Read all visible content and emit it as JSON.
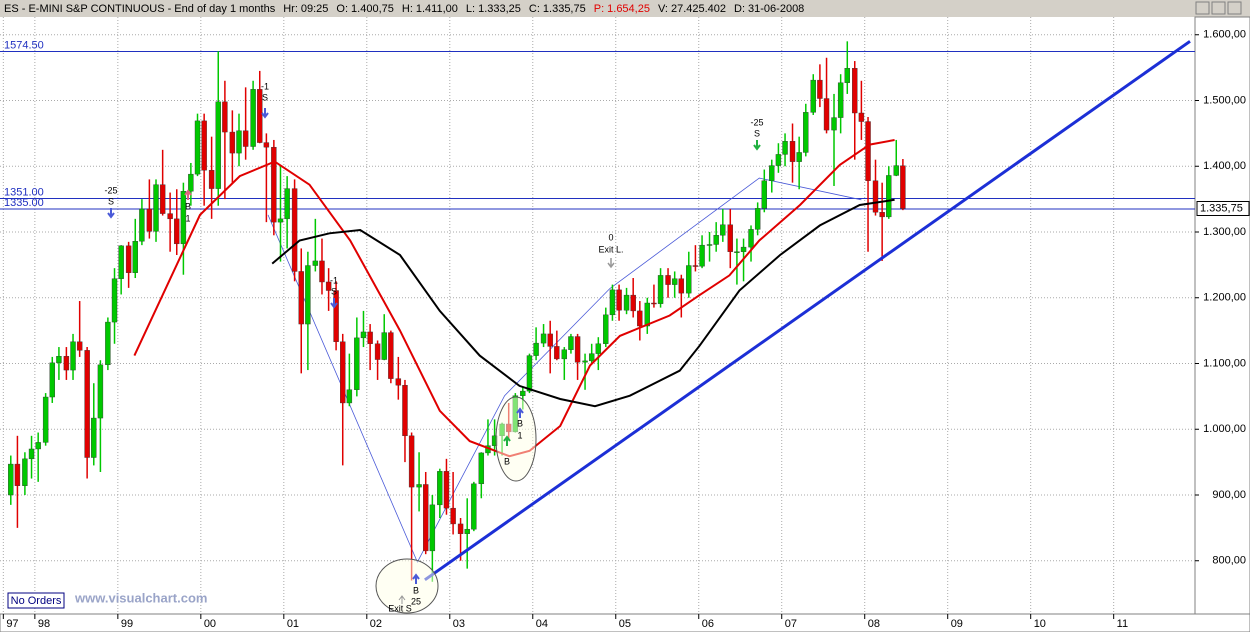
{
  "chart_data": {
    "type": "candlestick",
    "header_title": "ES - E-MINI S&P CONTINUOUS - End of day 1 months",
    "header": [
      {
        "label": "Hr:",
        "value": "09:25"
      },
      {
        "label": "O:",
        "value": "1.400,75"
      },
      {
        "label": "H:",
        "value": "1.411,00"
      },
      {
        "label": "L:",
        "value": "1.333,25"
      },
      {
        "label": "C:",
        "value": "1.335,75"
      },
      {
        "label": "P:",
        "value": "1.654,25",
        "color": "#e00000"
      },
      {
        "label": "V:",
        "value": "27.425.402"
      },
      {
        "label": "D:",
        "value": "31-06-2008"
      }
    ],
    "xlim": [
      1997.58,
      2011.98
    ],
    "ylim": [
      719,
      1627
    ],
    "grid": true,
    "xticks": [
      {
        "value": 1997.62,
        "label": "97"
      },
      {
        "value": 1998,
        "label": "98"
      },
      {
        "value": 1999,
        "label": "99"
      },
      {
        "value": 2000,
        "label": "00"
      },
      {
        "value": 2001,
        "label": "01"
      },
      {
        "value": 2002,
        "label": "02"
      },
      {
        "value": 2003,
        "label": "03"
      },
      {
        "value": 2004,
        "label": "04"
      },
      {
        "value": 2005,
        "label": "05"
      },
      {
        "value": 2006,
        "label": "06"
      },
      {
        "value": 2007,
        "label": "07"
      },
      {
        "value": 2008,
        "label": "08"
      },
      {
        "value": 2009,
        "label": "09"
      },
      {
        "value": 2010,
        "label": "10"
      },
      {
        "value": 2011,
        "label": "11"
      }
    ],
    "yticks": [
      {
        "value": 800,
        "label": "800,00"
      },
      {
        "value": 900,
        "label": "900,00"
      },
      {
        "value": 1000,
        "label": "1.000,00"
      },
      {
        "value": 1100,
        "label": "1.100,00"
      },
      {
        "value": 1200,
        "label": "1.200,00"
      },
      {
        "value": 1300,
        "label": "1.300,00"
      },
      {
        "value": 1400,
        "label": "1.400,00"
      },
      {
        "value": 1500,
        "label": "1.500,00"
      },
      {
        "value": 1600,
        "label": "1.600,00"
      }
    ],
    "up_color": "#00c800",
    "down_color": "#e00000",
    "x": [
      1997.71,
      1997.79,
      1997.88,
      1997.96,
      1998.04,
      1998.13,
      1998.21,
      1998.29,
      1998.38,
      1998.46,
      1998.54,
      1998.63,
      1998.71,
      1998.79,
      1998.88,
      1998.96,
      1999.04,
      1999.13,
      1999.21,
      1999.29,
      1999.38,
      1999.46,
      1999.54,
      1999.63,
      1999.71,
      1999.79,
      1999.88,
      1999.96,
      2000.04,
      2000.13,
      2000.21,
      2000.29,
      2000.38,
      2000.46,
      2000.54,
      2000.63,
      2000.71,
      2000.79,
      2000.88,
      2000.96,
      2001.04,
      2001.13,
      2001.21,
      2001.29,
      2001.38,
      2001.46,
      2001.54,
      2001.63,
      2001.71,
      2001.79,
      2001.88,
      2001.96,
      2002.04,
      2002.13,
      2002.21,
      2002.29,
      2002.38,
      2002.46,
      2002.54,
      2002.63,
      2002.71,
      2002.79,
      2002.88,
      2002.96,
      2003.04,
      2003.13,
      2003.21,
      2003.29,
      2003.38,
      2003.46,
      2003.54,
      2003.63,
      2003.71,
      2003.79,
      2003.88,
      2003.96,
      2004.04,
      2004.13,
      2004.21,
      2004.29,
      2004.38,
      2004.46,
      2004.54,
      2004.63,
      2004.71,
      2004.79,
      2004.88,
      2004.96,
      2005.04,
      2005.13,
      2005.21,
      2005.29,
      2005.38,
      2005.46,
      2005.54,
      2005.63,
      2005.71,
      2005.79,
      2005.88,
      2005.96,
      2006.04,
      2006.13,
      2006.21,
      2006.29,
      2006.38,
      2006.46,
      2006.54,
      2006.63,
      2006.71,
      2006.79,
      2006.88,
      2006.96,
      2007.04,
      2007.13,
      2007.21,
      2007.29,
      2007.38,
      2007.46,
      2007.54,
      2007.63,
      2007.71,
      2007.79,
      2007.88,
      2007.96,
      2008.04,
      2008.13,
      2008.21,
      2008.29,
      2008.38,
      2008.46
    ],
    "open": [
      900,
      947,
      914,
      955,
      970,
      980,
      1049,
      1101,
      1111,
      1090,
      1133,
      1120,
      957,
      1017,
      1098,
      1163,
      1229,
      1279,
      1238,
      1286,
      1335,
      1301,
      1372,
      1328,
      1320,
      1282,
      1362,
      1388,
      1469,
      1394,
      1366,
      1498,
      1452,
      1420,
      1454,
      1430,
      1517,
      1436,
      1429,
      1315,
      1320,
      1366,
      1240,
      1160,
      1249,
      1256,
      1224,
      1211,
      1133,
      1040,
      1060,
      1139,
      1148,
      1130,
      1106,
      1147,
      1077,
      1067,
      990,
      912,
      916,
      815,
      885,
      936,
      880,
      856,
      841,
      848,
      917,
      964,
      975,
      990,
      1008,
      996,
      1051,
      1058,
      1112,
      1131,
      1145,
      1126,
      1107,
      1121,
      1141,
      1102,
      1104,
      1115,
      1130,
      1174,
      1212,
      1181,
      1204,
      1180,
      1157,
      1192,
      1191,
      1234,
      1220,
      1229,
      1207,
      1249,
      1248,
      1280,
      1281,
      1295,
      1311,
      1270,
      1270,
      1277,
      1304,
      1336,
      1378,
      1401,
      1418,
      1438,
      1407,
      1421,
      1482,
      1531,
      1503,
      1455,
      1474,
      1527,
      1549,
      1481,
      1468,
      1378,
      1330,
      1323,
      1386,
      1400.75
    ],
    "high": [
      960,
      990,
      965,
      990,
      995,
      1055,
      1110,
      1125,
      1125,
      1145,
      1195,
      1125,
      1070,
      1105,
      1170,
      1245,
      1280,
      1285,
      1320,
      1350,
      1380,
      1380,
      1425,
      1360,
      1365,
      1375,
      1405,
      1480,
      1480,
      1445,
      1575,
      1530,
      1485,
      1480,
      1520,
      1530,
      1545,
      1450,
      1440,
      1400,
      1385,
      1380,
      1275,
      1270,
      1320,
      1290,
      1245,
      1225,
      1145,
      1115,
      1170,
      1180,
      1160,
      1135,
      1175,
      1150,
      1110,
      1075,
      995,
      965,
      935,
      900,
      940,
      955,
      935,
      865,
      895,
      920,
      965,
      1015,
      1015,
      1010,
      1040,
      1055,
      1065,
      1115,
      1155,
      1160,
      1165,
      1150,
      1125,
      1145,
      1145,
      1115,
      1130,
      1140,
      1185,
      1220,
      1220,
      1215,
      1230,
      1195,
      1200,
      1220,
      1245,
      1245,
      1240,
      1235,
      1270,
      1280,
      1295,
      1300,
      1315,
      1335,
      1335,
      1290,
      1290,
      1310,
      1345,
      1395,
      1410,
      1435,
      1450,
      1465,
      1445,
      1495,
      1540,
      1555,
      1565,
      1510,
      1540,
      1590,
      1560,
      1530,
      1475,
      1410,
      1375,
      1400,
      1440,
      1411
    ],
    "low": [
      885,
      850,
      900,
      925,
      920,
      975,
      1040,
      1075,
      1075,
      1075,
      1110,
      925,
      945,
      935,
      1090,
      1130,
      1205,
      1215,
      1230,
      1280,
      1290,
      1285,
      1325,
      1270,
      1265,
      1235,
      1340,
      1385,
      1340,
      1320,
      1340,
      1350,
      1375,
      1400,
      1410,
      1425,
      1435,
      1315,
      1295,
      1255,
      1275,
      1225,
      1085,
      1090,
      1240,
      1205,
      1180,
      1120,
      945,
      1035,
      1050,
      1125,
      1090,
      1075,
      1105,
      1070,
      1045,
      950,
      770,
      875,
      810,
      768,
      865,
      870,
      840,
      800,
      788,
      845,
      895,
      960,
      960,
      960,
      985,
      995,
      1030,
      1055,
      1105,
      1125,
      1085,
      1105,
      1075,
      1115,
      1075,
      1060,
      1100,
      1090,
      1125,
      1165,
      1165,
      1175,
      1170,
      1135,
      1145,
      1185,
      1185,
      1200,
      1200,
      1170,
      1200,
      1240,
      1245,
      1255,
      1270,
      1285,
      1245,
      1220,
      1225,
      1255,
      1295,
      1330,
      1360,
      1390,
      1400,
      1375,
      1365,
      1415,
      1478,
      1490,
      1450,
      1370,
      1450,
      1510,
      1410,
      1440,
      1270,
      1325,
      1256,
      1320,
      1385,
      1333.25
    ],
    "close": [
      947,
      914,
      955,
      970,
      980,
      1049,
      1101,
      1111,
      1090,
      1133,
      1120,
      957,
      1017,
      1098,
      1163,
      1229,
      1279,
      1238,
      1286,
      1335,
      1301,
      1372,
      1328,
      1320,
      1282,
      1362,
      1388,
      1469,
      1394,
      1366,
      1498,
      1452,
      1420,
      1454,
      1430,
      1517,
      1436,
      1429,
      1315,
      1320,
      1366,
      1240,
      1160,
      1249,
      1256,
      1224,
      1211,
      1133,
      1040,
      1060,
      1139,
      1148,
      1130,
      1106,
      1147,
      1077,
      1067,
      990,
      912,
      916,
      815,
      885,
      936,
      880,
      856,
      841,
      848,
      917,
      964,
      975,
      990,
      1008,
      996,
      1051,
      1058,
      1112,
      1131,
      1145,
      1126,
      1107,
      1121,
      1141,
      1102,
      1104,
      1115,
      1130,
      1174,
      1212,
      1181,
      1204,
      1180,
      1157,
      1192,
      1191,
      1234,
      1220,
      1229,
      1207,
      1249,
      1248,
      1280,
      1281,
      1295,
      1311,
      1270,
      1270,
      1277,
      1304,
      1336,
      1378,
      1401,
      1418,
      1438,
      1407,
      1421,
      1482,
      1531,
      1503,
      1455,
      1474,
      1527,
      1549,
      1481,
      1468,
      1378,
      1330,
      1323,
      1386,
      1401,
      1335.75
    ],
    "moving_averages": [
      {
        "color": "#e00000",
        "x": [
          1999.2,
          1999.99,
          2000.47,
          2000.89,
          2001.31,
          2001.8,
          2002.4,
          2002.88,
          2003.24,
          2003.72,
          2003.96,
          2004.33,
          2004.69,
          2005.05,
          2005.65,
          2006.01,
          2006.37,
          2006.73,
          2007.22,
          2007.7,
          2008.06,
          2008.36
        ],
        "values": [
          1112,
          1326,
          1385,
          1407,
          1372,
          1287,
          1150,
          1028,
          982,
          959,
          967,
          1005,
          1097,
          1142,
          1173,
          1204,
          1234,
          1287,
          1341,
          1402,
          1433,
          1440
        ]
      },
      {
        "color": "#000000",
        "x": [
          2000.86,
          2001.19,
          2001.55,
          2001.92,
          2002.4,
          2002.88,
          2003.36,
          2003.84,
          2004.33,
          2004.75,
          2005.17,
          2005.77,
          2006.01,
          2006.49,
          2006.98,
          2007.46,
          2007.94,
          2008.36
        ],
        "values": [
          1252,
          1287,
          1298,
          1303,
          1265,
          1180,
          1112,
          1066,
          1046,
          1035,
          1051,
          1089,
          1127,
          1211,
          1265,
          1310,
          1341,
          1349
        ]
      }
    ],
    "zigzag": {
      "color": "#4a5ad8",
      "x": [
        2000.81,
        2002.61,
        2003.66,
        2004.93,
        2006.73,
        2007.96
      ],
      "values": [
        1326,
        798,
        1051,
        1214,
        1382,
        1349
      ]
    },
    "trend_line": {
      "color": "#1c2fd6",
      "x": [
        2002.7,
        2011.92
      ],
      "values": [
        771,
        1590
      ]
    },
    "levels": [
      {
        "value": 1574.5,
        "label": "1574.50"
      },
      {
        "value": 1351,
        "label": "1351.00"
      },
      {
        "value": 1335,
        "label": "1335.00"
      }
    ],
    "level_color": "#2030c0",
    "last_price": {
      "value": 1335.75,
      "label": "1.335,75"
    },
    "annotations": [
      "-25",
      "S",
      "B",
      "1",
      "-1",
      "S",
      "-1",
      "S",
      "0",
      "Exit L.",
      "-25",
      "S",
      "B",
      "1",
      "B",
      "B",
      "25",
      "Exit S"
    ],
    "orders": "No Orders",
    "watermark": "www.visualchart.com"
  }
}
